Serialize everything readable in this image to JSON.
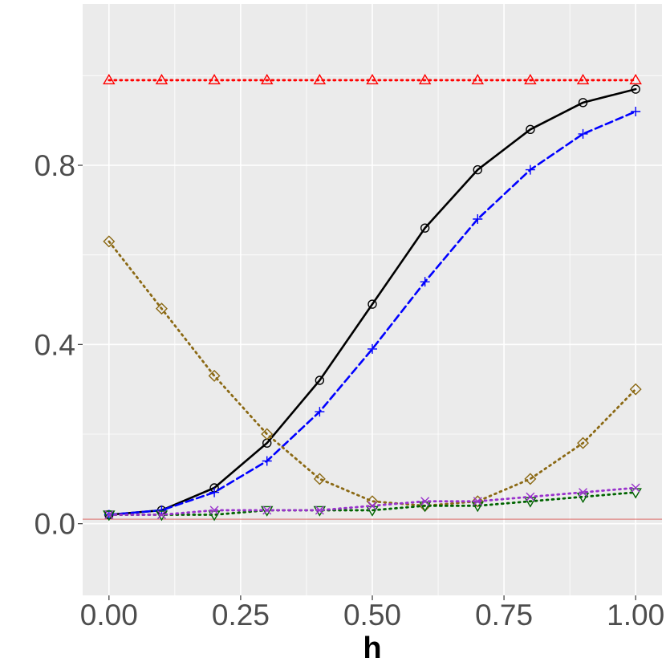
{
  "chart_data": {
    "type": "line",
    "xlabel": "h",
    "ylabel": "",
    "xlim": [
      -0.05,
      1.05
    ],
    "ylim": [
      -0.16,
      1.16
    ],
    "x_ticks": [
      {
        "value": 0.0,
        "label": "0.00"
      },
      {
        "value": 0.25,
        "label": "0.25"
      },
      {
        "value": 0.5,
        "label": "0.50"
      },
      {
        "value": 0.75,
        "label": "0.75"
      },
      {
        "value": 1.0,
        "label": "1.00"
      }
    ],
    "y_ticks": [
      {
        "value": 0.0,
        "label": "0.0"
      },
      {
        "value": 0.4,
        "label": "0.4"
      },
      {
        "value": 0.8,
        "label": "0.8"
      }
    ],
    "grid": true,
    "reference_line": {
      "y": 0.01,
      "color": "#d9534f"
    },
    "x": [
      0.0,
      0.1,
      0.2,
      0.3,
      0.4,
      0.5,
      0.6,
      0.7,
      0.8,
      0.9,
      1.0
    ],
    "series": [
      {
        "color": "#ff0000",
        "marker": "triangle-up",
        "dash": "dotted",
        "values": [
          0.99,
          0.99,
          0.99,
          0.99,
          0.99,
          0.99,
          0.99,
          0.99,
          0.99,
          0.99,
          0.99
        ]
      },
      {
        "color": "#000000",
        "marker": "circle",
        "dash": "solid",
        "values": [
          0.02,
          0.03,
          0.08,
          0.18,
          0.32,
          0.49,
          0.66,
          0.79,
          0.88,
          0.94,
          0.97
        ]
      },
      {
        "color": "#0000ff",
        "marker": "plus",
        "dash": "dashed",
        "values": [
          0.02,
          0.03,
          0.07,
          0.14,
          0.25,
          0.39,
          0.54,
          0.68,
          0.79,
          0.87,
          0.92
        ]
      },
      {
        "color": "#8b6914",
        "marker": "diamond",
        "dash": "dotted",
        "values": [
          0.63,
          0.48,
          0.33,
          0.2,
          0.1,
          0.05,
          0.04,
          0.05,
          0.1,
          0.18,
          0.3
        ]
      },
      {
        "color": "#006400",
        "marker": "triangle-down",
        "dash": "dotted",
        "values": [
          0.02,
          0.02,
          0.02,
          0.03,
          0.03,
          0.03,
          0.04,
          0.04,
          0.05,
          0.06,
          0.07
        ]
      },
      {
        "color": "#9932cc",
        "marker": "cross",
        "dash": "dotted",
        "values": [
          0.02,
          0.02,
          0.03,
          0.03,
          0.03,
          0.04,
          0.05,
          0.05,
          0.06,
          0.07,
          0.08
        ]
      }
    ]
  }
}
